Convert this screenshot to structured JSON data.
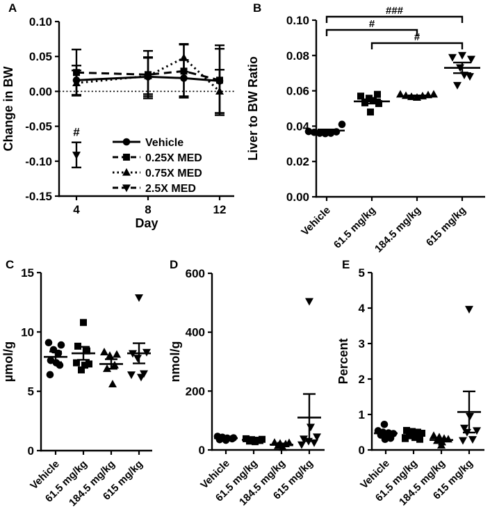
{
  "figure": {
    "background": "#ffffff",
    "ink": "#000000"
  },
  "chart_data": [
    {
      "panel_label": "A",
      "type": "line",
      "xlabel": "Day",
      "ylabel": "Change in BW",
      "x": [
        4,
        8,
        10,
        12
      ],
      "xtick_labels": [
        "4",
        "8",
        "12"
      ],
      "ylim": [
        -0.15,
        0.1
      ],
      "ytick_labels": [
        "0.10",
        "0.05",
        "0.00",
        "-0.05",
        "-0.10",
        "-0.15"
      ],
      "zero_line": true,
      "legend_position": "inside lower right",
      "series": [
        {
          "name": "Vehicle",
          "marker": "circle",
          "line": "solid",
          "values": [
            0.016,
            0.021,
            0.019,
            0.015
          ],
          "errors": [
            0.021,
            0.028,
            0.026,
            0.046
          ]
        },
        {
          "name": "0.25X MED",
          "marker": "square",
          "line": "dashed",
          "values": [
            0.027,
            0.024,
            0.029,
            0.016
          ],
          "errors": [
            0.033,
            0.034,
            0.038,
            0.05
          ]
        },
        {
          "name": "0.75X MED",
          "marker": "triangle-up",
          "line": "dotted",
          "values": [
            0.012,
            0.022,
            0.048,
            0.0
          ],
          "errors": [
            0.018,
            0.026,
            0.02,
            0.031
          ]
        },
        {
          "name": "2.5X MED",
          "marker": "triangle-down",
          "line": "dashed",
          "values": [
            -0.091,
            null,
            null,
            null
          ],
          "errors": [
            0.018,
            null,
            null,
            null
          ]
        }
      ],
      "annotations": [
        {
          "text": "#",
          "x": 4,
          "y": -0.064
        }
      ]
    },
    {
      "panel_label": "B",
      "type": "scatter",
      "ylabel": "Liver to BW Ratio",
      "categories": [
        "Vehicle",
        "61.5 mg/kg",
        "184.5 mg/kg",
        "615 mg/kg"
      ],
      "markers": [
        "circle",
        "square",
        "triangle-up",
        "triangle-down"
      ],
      "ylim": [
        0,
        0.1
      ],
      "ytick_labels": [
        "0.10",
        "0.08",
        "0.06",
        "0.04",
        "0.02",
        "0.00"
      ],
      "groups": [
        {
          "mean": 0.0375,
          "sem": 0.0006,
          "points": [
            [
              -26,
              0.037
            ],
            [
              -18,
              0.0365
            ],
            [
              -10,
              0.036
            ],
            [
              -2,
              0.0358
            ],
            [
              6,
              0.036
            ],
            [
              14,
              0.0368
            ],
            [
              22,
              0.041
            ]
          ]
        },
        {
          "mean": 0.054,
          "sem": 0.0012,
          "points": [
            [
              -16,
              0.057
            ],
            [
              -4,
              0.0558
            ],
            [
              8,
              0.058
            ],
            [
              -10,
              0.0532
            ],
            [
              2,
              0.0545
            ],
            [
              10,
              0.0528
            ],
            [
              -2,
              0.048
            ]
          ]
        },
        {
          "mean": 0.057,
          "sem": 0.0004,
          "points": [
            [
              -24,
              0.058
            ],
            [
              -16,
              0.0572
            ],
            [
              -8,
              0.0566
            ],
            [
              0,
              0.0562
            ],
            [
              8,
              0.057
            ],
            [
              16,
              0.0576
            ],
            [
              24,
              0.058
            ]
          ]
        },
        {
          "mean": 0.073,
          "sem": 0.003,
          "points": [
            [
              -14,
              0.079
            ],
            [
              0,
              0.0802
            ],
            [
              13,
              0.078
            ],
            [
              -3,
              0.0732
            ],
            [
              3,
              0.069
            ],
            [
              11,
              0.0682
            ],
            [
              -7,
              0.0632
            ]
          ]
        }
      ],
      "significance_brackets": [
        {
          "from": "Vehicle",
          "to": "615 mg/kg",
          "label": "###"
        },
        {
          "from": "Vehicle",
          "to": "184.5 mg/kg",
          "label": "#"
        },
        {
          "from": "61.5 mg/kg",
          "to": "615 mg/kg",
          "label": "#"
        }
      ]
    },
    {
      "panel_label": "C",
      "type": "scatter",
      "ylabel": "µmol/g",
      "categories": [
        "Vehicle",
        "61.5 mg/kg",
        "184.5 mg/kg",
        "615 mg/kg"
      ],
      "markers": [
        "circle",
        "square",
        "triangle-up",
        "triangle-down"
      ],
      "ylim": [
        0,
        15
      ],
      "ytick_labels": [
        "15",
        "10",
        "5",
        "0"
      ],
      "groups": [
        {
          "mean": 7.9,
          "sem": 0.45,
          "points": [
            [
              -10,
              9.1
            ],
            [
              8,
              8.9
            ],
            [
              -3,
              8.5
            ],
            [
              4,
              8.2
            ],
            [
              -7,
              7.6
            ],
            [
              1,
              7.4
            ],
            [
              6,
              7.2
            ],
            [
              -8,
              6.4
            ]
          ]
        },
        {
          "mean": 8.2,
          "sem": 0.55,
          "points": [
            [
              0,
              10.8
            ],
            [
              -8,
              8.8
            ],
            [
              5,
              8.4
            ],
            [
              -10,
              7.4
            ],
            [
              8,
              7.3
            ],
            [
              2,
              7.2
            ],
            [
              -3,
              6.8
            ]
          ]
        },
        {
          "mean": 7.3,
          "sem": 0.4,
          "points": [
            [
              -10,
              8.3
            ],
            [
              8,
              8.1
            ],
            [
              -2,
              8.0
            ],
            [
              5,
              7.2
            ],
            [
              -6,
              6.9
            ],
            [
              2,
              5.6
            ]
          ]
        },
        {
          "mean": 8.2,
          "sem": 0.85,
          "points": [
            [
              0,
              12.9
            ],
            [
              11,
              8.3
            ],
            [
              -9,
              8.2
            ],
            [
              -2,
              7.8
            ],
            [
              7,
              6.5
            ],
            [
              -11,
              6.4
            ],
            [
              3,
              6.2
            ]
          ]
        }
      ],
      "significance_brackets": []
    },
    {
      "panel_label": "D",
      "type": "scatter",
      "ylabel": "nmol/g",
      "categories": [
        "Vehicle",
        "61.5 mg/kg",
        "184.5 mg/kg",
        "615 mg/kg"
      ],
      "markers": [
        "circle",
        "square",
        "triangle-up",
        "triangle-down"
      ],
      "ylim": [
        0,
        600
      ],
      "ytick_labels": [
        "600",
        "400",
        "200",
        "0"
      ],
      "groups": [
        {
          "mean": 40,
          "sem": 4,
          "points": [
            [
              -12,
              46
            ],
            [
              -5,
              43
            ],
            [
              2,
              40
            ],
            [
              9,
              38
            ],
            [
              -9,
              35
            ],
            [
              0,
              33
            ],
            [
              11,
              41
            ]
          ]
        },
        {
          "mean": 34,
          "sem": 3,
          "points": [
            [
              -11,
              38
            ],
            [
              -3,
              35
            ],
            [
              5,
              33
            ],
            [
              12,
              36
            ],
            [
              -6,
              30
            ],
            [
              2,
              28
            ],
            [
              9,
              32
            ]
          ]
        },
        {
          "mean": 18,
          "sem": 4,
          "points": [
            [
              -10,
              25
            ],
            [
              -2,
              22
            ],
            [
              6,
              20
            ],
            [
              11,
              24
            ],
            [
              -5,
              14
            ],
            [
              2,
              8
            ]
          ]
        },
        {
          "mean": 110,
          "sem": 80,
          "points": [
            [
              0,
              505
            ],
            [
              2,
              78
            ],
            [
              11,
              45
            ],
            [
              -8,
              38
            ],
            [
              -1,
              30
            ],
            [
              7,
              25
            ],
            [
              -11,
              18
            ]
          ]
        }
      ],
      "significance_brackets": []
    },
    {
      "panel_label": "E",
      "type": "scatter",
      "ylabel": "Percent",
      "categories": [
        "Vehicle",
        "61.5 mg/kg",
        "184.5 mg/kg",
        "615 mg/kg"
      ],
      "markers": [
        "circle",
        "square",
        "triangle-up",
        "triangle-down"
      ],
      "ylim": [
        0,
        5
      ],
      "ytick_labels": [
        "5",
        "4",
        "3",
        "2",
        "1",
        "0"
      ],
      "groups": [
        {
          "mean": 0.47,
          "sem": 0.05,
          "points": [
            [
              -2,
              0.72
            ],
            [
              -11,
              0.54
            ],
            [
              -4,
              0.5
            ],
            [
              4,
              0.48
            ],
            [
              11,
              0.46
            ],
            [
              -7,
              0.42
            ],
            [
              1,
              0.38
            ],
            [
              7,
              0.33
            ],
            [
              -1,
              0.3
            ]
          ]
        },
        {
          "mean": 0.42,
          "sem": 0.04,
          "points": [
            [
              -10,
              0.55
            ],
            [
              -2,
              0.52
            ],
            [
              6,
              0.5
            ],
            [
              12,
              0.47
            ],
            [
              -6,
              0.4
            ],
            [
              2,
              0.35
            ],
            [
              9,
              0.3
            ],
            [
              -12,
              0.32
            ]
          ]
        },
        {
          "mean": 0.28,
          "sem": 0.035,
          "points": [
            [
              -11,
              0.4
            ],
            [
              -3,
              0.36
            ],
            [
              4,
              0.32
            ],
            [
              10,
              0.3
            ],
            [
              -6,
              0.26
            ],
            [
              1,
              0.22
            ],
            [
              0,
              0.13
            ]
          ]
        },
        {
          "mean": 1.07,
          "sem": 0.58,
          "points": [
            [
              0,
              3.97
            ],
            [
              1,
              0.95
            ],
            [
              -7,
              0.62
            ],
            [
              11,
              0.55
            ],
            [
              -3,
              0.5
            ],
            [
              -9,
              0.27
            ],
            [
              5,
              0.3
            ]
          ]
        }
      ],
      "significance_brackets": []
    }
  ]
}
